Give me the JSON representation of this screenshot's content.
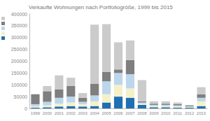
{
  "chart_data": {
    "type": "bar",
    "title": "Verkaufte Wohnungen nach Portfoliogröße, 1999 bis 2015",
    "categories": [
      "1999",
      "2000",
      "2001",
      "2002",
      "2003",
      "2004",
      "2005",
      "2006",
      "2007",
      "2008",
      "2009",
      "2010",
      "2011",
      "2012",
      "2013"
    ],
    "stacked": true,
    "series": [
      {
        "color": "#1f6fb2",
        "values": [
          3000,
          5000,
          8000,
          10000,
          8000,
          10000,
          25000,
          50000,
          45000,
          15000,
          5000,
          5000,
          3000,
          3000,
          10000
        ]
      },
      {
        "color": "#f4f1c9",
        "values": [
          5000,
          8000,
          12000,
          15000,
          10000,
          20000,
          35000,
          50000,
          40000,
          5000,
          5000,
          5000,
          5000,
          3000,
          20000
        ]
      },
      {
        "color": "#bcd6ec",
        "values": [
          10000,
          15000,
          25000,
          25000,
          10000,
          25000,
          55000,
          50000,
          60000,
          5000,
          5000,
          5000,
          5000,
          3000,
          15000
        ]
      },
      {
        "color": "#7f7f7f",
        "values": [
          42000,
          45000,
          35000,
          45000,
          17000,
          50000,
          40000,
          15000,
          60000,
          5000,
          5000,
          5000,
          5000,
          3000,
          15000
        ]
      },
      {
        "color": "#cbcbcb",
        "values": [
          0,
          22000,
          60000,
          35000,
          20000,
          250000,
          202000,
          115000,
          83000,
          90000,
          10000,
          10000,
          7000,
          3000,
          30000
        ]
      }
    ],
    "ylim": [
      0,
      400000
    ],
    "yticks": [
      0,
      50000,
      100000,
      150000,
      200000,
      250000,
      300000,
      350000,
      400000
    ],
    "grid": false
  }
}
